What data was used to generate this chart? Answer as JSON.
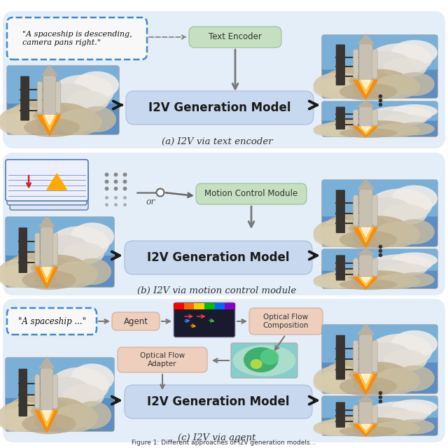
{
  "fig_width": 6.4,
  "fig_height": 6.4,
  "dpi": 100,
  "bg_color": "#ffffff",
  "panel_bg": "#e4eef8",
  "i2v_box_color": "#c8d8ee",
  "i2v_box_edge": "#aabbdd",
  "i2v_text": "I2V Generation Model",
  "text_encoder_color": "#c5dfc0",
  "text_encoder_edge": "#9bbf95",
  "text_encoder_text": "Text Encoder",
  "motion_module_color": "#c5dfc0",
  "motion_module_edge": "#9bbf95",
  "motion_module_text": "Motion Control Module",
  "agent_box_color": "#eecfbe",
  "agent_box_edge": "#d4a898",
  "agent_text": "Agent",
  "of_comp_text": "Optical Flow\nComposition",
  "of_adapt_text": "Optical Flow\nAdapter",
  "quote_a": "\"A spaceship is descending,\ncamera pans right.\"",
  "quote_c": "\"A spaceship ...\"",
  "caption_a": "(a) I2V via text encoder",
  "caption_b": "(b) I2V via motion control module",
  "caption_c": "(c) I2V via agent",
  "fig_caption": "Figure 1: Different approaches of I2V generation models...",
  "dash_border_color": "#4488cc",
  "arrow_color": "#666666",
  "thick_arrow_color": "#222222",
  "sky_blue": "#5b8ec2",
  "sky_light": "#7aaed4",
  "cloud_color": "#c8b89a",
  "smoke_color": "#d4c8b0"
}
